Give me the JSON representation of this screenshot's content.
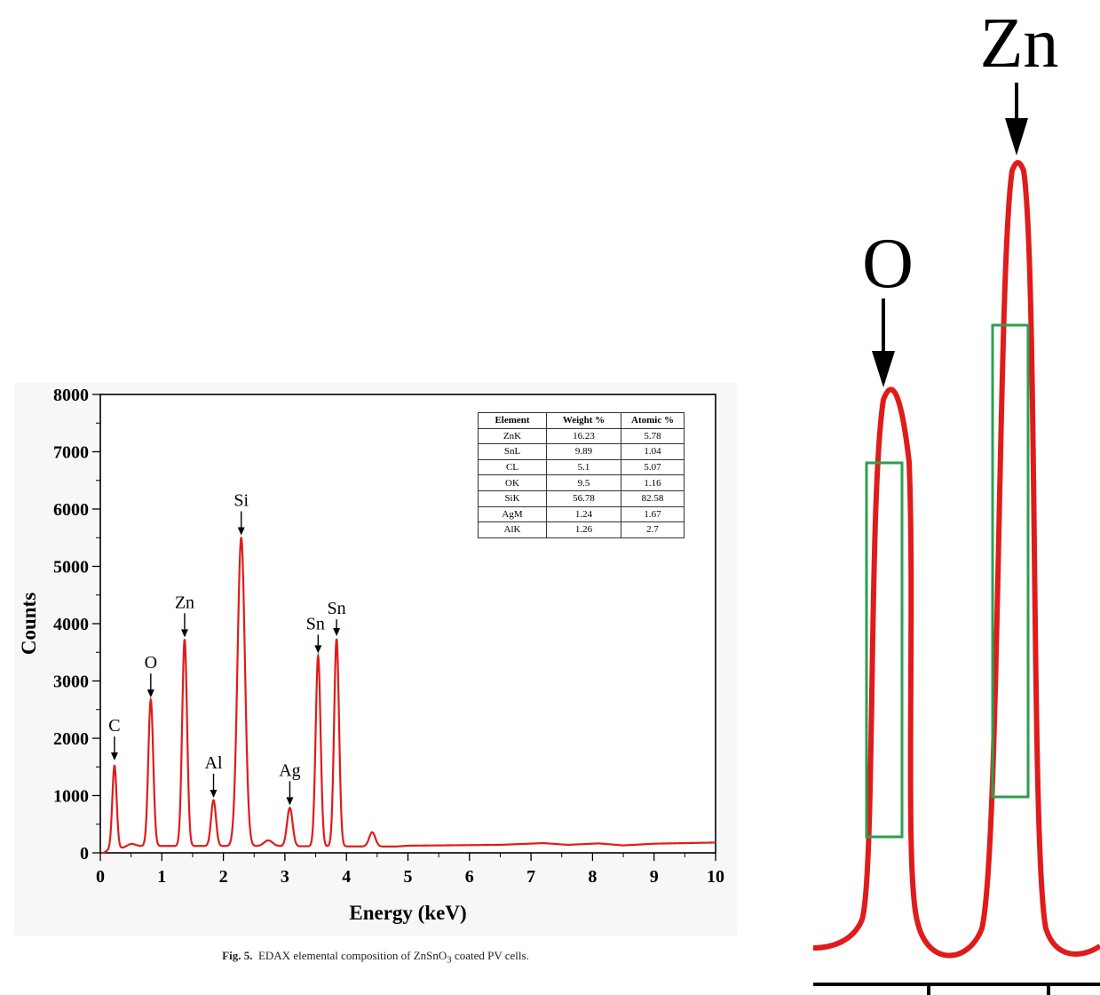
{
  "chart_data": {
    "type": "line",
    "xlabel": "Energy (keV)",
    "ylabel": "Counts",
    "xlim": [
      0,
      10
    ],
    "ylim": [
      0,
      8000
    ],
    "xticks": [
      "0",
      "1",
      "2",
      "3",
      "4",
      "5",
      "6",
      "7",
      "8",
      "9",
      "10"
    ],
    "yticks": [
      "0",
      "1000",
      "2000",
      "3000",
      "4000",
      "5000",
      "6000",
      "7000",
      "8000"
    ],
    "line_color": "#e01b1b",
    "grid": false,
    "peaks": [
      {
        "label": "C",
        "x": 0.23,
        "y": 1550,
        "width": 0.035
      },
      {
        "label": "O",
        "x": 0.82,
        "y": 2650,
        "width": 0.04
      },
      {
        "label": "Zn",
        "x": 1.37,
        "y": 3700,
        "width": 0.04
      },
      {
        "label": "Al",
        "x": 1.84,
        "y": 900,
        "width": 0.04
      },
      {
        "label": "Si",
        "x": 2.29,
        "y": 5480,
        "width": 0.06
      },
      {
        "label": "Ag",
        "x": 3.08,
        "y": 770,
        "width": 0.045
      },
      {
        "label": "Sn",
        "x": 3.54,
        "y": 3420,
        "width": 0.04
      },
      {
        "label": "Sn",
        "x": 3.84,
        "y": 3720,
        "width": 0.04
      }
    ],
    "minor_peaks": [
      {
        "x": 0.5,
        "y": 150,
        "width": 0.06
      },
      {
        "x": 2.73,
        "y": 200,
        "width": 0.07
      },
      {
        "x": 4.42,
        "y": 350,
        "width": 0.05
      }
    ],
    "baseline": [
      [
        0.05,
        0
      ],
      [
        0.15,
        60
      ],
      [
        0.6,
        120
      ],
      [
        2.0,
        120
      ],
      [
        4.8,
        110
      ],
      [
        5.0,
        125
      ],
      [
        6.5,
        140
      ],
      [
        7.2,
        170
      ],
      [
        7.6,
        140
      ],
      [
        8.1,
        165
      ],
      [
        8.5,
        130
      ],
      [
        9.0,
        160
      ],
      [
        10.0,
        180
      ]
    ],
    "table": {
      "headers": [
        "Element",
        "Weight %",
        "Atomic %"
      ],
      "rows": [
        [
          "ZnK",
          "16.23",
          "5.78"
        ],
        [
          "SnL",
          "9.89",
          "1.04"
        ],
        [
          "CL",
          "5.1",
          "5.07"
        ],
        [
          "OK",
          "9.5",
          "1.16"
        ],
        [
          "SiK",
          "56.78",
          "82.58"
        ],
        [
          "AgM",
          "1.24",
          "1.67"
        ],
        [
          "AlK",
          "1.26",
          "2.7"
        ]
      ]
    }
  },
  "caption": {
    "label": "Fig. 5.",
    "text": "EDAX elemental composition of ZnSnO",
    "subscript": "3",
    "text_after": " coated PV cells."
  },
  "zoom_panel": {
    "labels": [
      "O",
      "Zn"
    ],
    "highlight_color": "#2e9e4f"
  }
}
